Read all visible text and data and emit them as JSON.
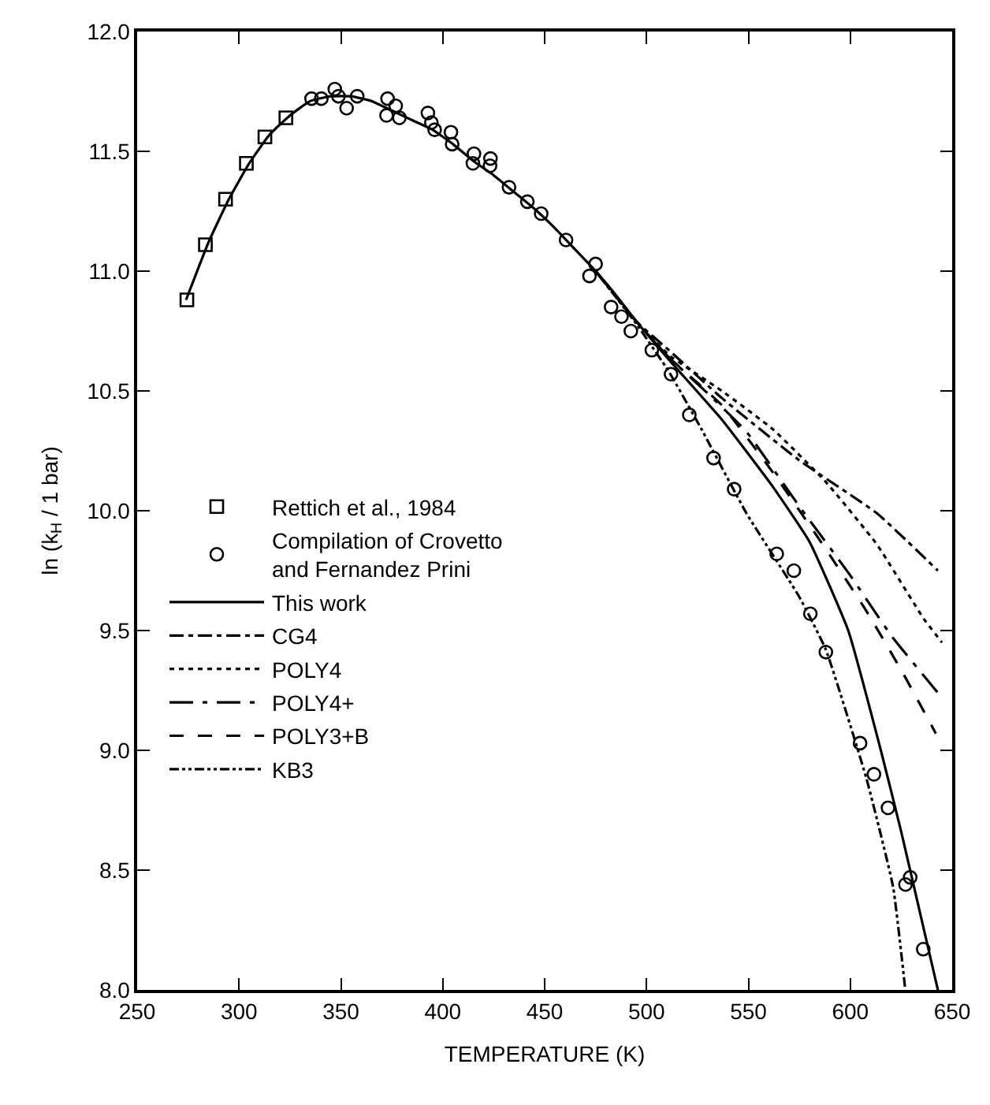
{
  "chart_data": {
    "type": "line",
    "xlabel": "TEMPERATURE (K)",
    "ylabel": "ln (k$_{H}$ / 1 bar)",
    "xlim": [
      250,
      650
    ],
    "xticks": [
      250,
      300,
      350,
      400,
      450,
      500,
      550,
      600,
      650
    ],
    "ylim": [
      8.0,
      12.0
    ],
    "yticks": [
      {
        "value": 8.0,
        "label": "8.0"
      },
      {
        "value": 8.5,
        "label": "8.5"
      },
      {
        "value": 9.0,
        "label": "9.0"
      },
      {
        "value": 9.5,
        "label": "9.5"
      },
      {
        "value": 10.0,
        "label": "10.0"
      },
      {
        "value": 10.5,
        "label": "10.5"
      },
      {
        "value": 11.0,
        "label": "11.0"
      },
      {
        "value": 11.5,
        "label": "11.5"
      },
      {
        "value": 12.0,
        "label": "12.0"
      }
    ],
    "legend": "left",
    "series": [
      {
        "name": "Rettich et al., 1984",
        "type": "scatter",
        "marker": "square",
        "color": "#000000",
        "x": [
          274.4,
          283.5,
          293.4,
          303.6,
          312.7,
          323.0
        ],
        "values": [
          10.88,
          11.11,
          11.3,
          11.45,
          11.56,
          11.64
        ]
      },
      {
        "name": "Compilation of Crovetto\nand Fernandez Prini",
        "type": "scatter",
        "marker": "circle",
        "color": "#000000",
        "x": [
          335.6,
          340.4,
          347.0,
          348.8,
          352.8,
          358.0,
          372.9,
          372.4,
          376.9,
          378.7,
          392.7,
          394.4,
          396.0,
          404.0,
          404.6,
          415.3,
          414.8,
          423.4,
          423.2,
          432.5,
          441.5,
          448.3,
          460.5,
          475.0,
          472.0,
          482.6,
          487.7,
          492.3,
          502.6,
          512.0,
          521.0,
          532.9,
          543.0,
          563.9,
          572.3,
          580.4,
          588.0,
          604.8,
          611.6,
          618.5,
          629.4,
          627.1,
          635.8
        ],
        "values": [
          11.72,
          11.72,
          11.76,
          11.73,
          11.68,
          11.73,
          11.72,
          11.65,
          11.69,
          11.64,
          11.66,
          11.62,
          11.59,
          11.58,
          11.53,
          11.49,
          11.45,
          11.47,
          11.44,
          11.35,
          11.29,
          11.24,
          11.13,
          11.03,
          10.98,
          10.85,
          10.81,
          10.75,
          10.67,
          10.57,
          10.4,
          10.22,
          10.09,
          9.82,
          9.75,
          9.57,
          9.41,
          9.03,
          8.9,
          8.76,
          8.47,
          8.44,
          8.17
        ]
      },
      {
        "name": "This work",
        "line_style": "solid",
        "color": "#000000",
        "x": [
          274,
          285,
          295,
          305,
          315,
          325,
          335,
          345,
          355,
          365,
          375,
          385,
          395,
          405,
          415,
          425,
          435,
          445,
          455,
          465,
          475,
          485,
          495,
          511,
          537,
          562,
          580,
          599,
          615,
          625,
          634,
          643
        ],
        "values": [
          10.88,
          11.12,
          11.3,
          11.45,
          11.57,
          11.65,
          11.71,
          11.73,
          11.73,
          11.71,
          11.67,
          11.63,
          11.59,
          11.53,
          11.46,
          11.4,
          11.33,
          11.26,
          11.18,
          11.09,
          11.0,
          10.9,
          10.79,
          10.63,
          10.38,
          10.1,
          9.87,
          9.5,
          9.0,
          8.66,
          8.33,
          8.0
        ]
      },
      {
        "name": "CG4",
        "line_style": "dashdot",
        "color": "#000000",
        "x": [
          475,
          495,
          511,
          537,
          575,
          613,
          643
        ],
        "values": [
          11.0,
          10.79,
          10.67,
          10.47,
          10.21,
          9.99,
          9.75
        ]
      },
      {
        "name": "POLY4",
        "line_style": "dotted",
        "color": "#000000",
        "x": [
          475,
          495,
          511,
          537,
          562,
          588,
          613,
          636,
          645
        ],
        "values": [
          11.0,
          10.79,
          10.65,
          10.5,
          10.34,
          10.12,
          9.86,
          9.55,
          9.45
        ]
      },
      {
        "name": "POLY4+",
        "line_style": "longdashdot",
        "color": "#000000",
        "x": [
          475,
          495,
          511,
          530,
          549,
          574,
          600,
          620,
          643
        ],
        "values": [
          11.0,
          10.79,
          10.64,
          10.49,
          10.33,
          10.03,
          9.73,
          9.48,
          9.24
        ]
      },
      {
        "name": "POLY3+B",
        "line_style": "dashed",
        "color": "#000000",
        "x": [
          475,
          495,
          511,
          537,
          562,
          588,
          608,
          626,
          642
        ],
        "values": [
          11.0,
          10.79,
          10.64,
          10.44,
          10.16,
          9.84,
          9.58,
          9.32,
          9.07
        ]
      },
      {
        "name": "KB3",
        "line_style": "dashdotdot",
        "color": "#000000",
        "x": [
          475,
          495,
          511,
          527,
          549,
          575,
          588,
          608,
          621,
          627
        ],
        "values": [
          11.0,
          10.78,
          10.58,
          10.34,
          9.99,
          9.64,
          9.42,
          8.88,
          8.43,
          8.0
        ]
      }
    ]
  }
}
